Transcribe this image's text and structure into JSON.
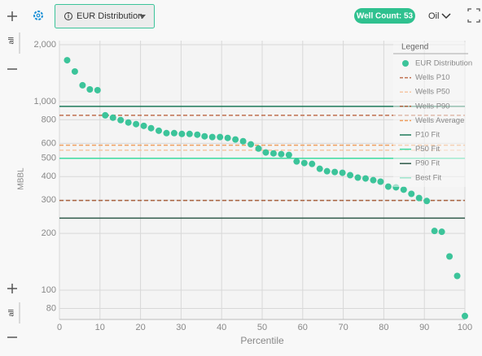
{
  "toolbar": {
    "dropdown": "EUR Distribution",
    "well_count": "Well Count: 53",
    "product": "Oil",
    "side_label_top": "all",
    "side_label_bottom": "all"
  },
  "chart_data": {
    "type": "scatter",
    "ylabel": "MBBL",
    "xlabel": "Percentile",
    "legend_title": "Legend",
    "legend": "top-right",
    "xlim": [
      0,
      100
    ],
    "xticks": [
      0,
      10,
      20,
      30,
      40,
      50,
      60,
      70,
      80,
      90,
      100
    ],
    "ylim": [
      70,
      2000
    ],
    "log_y": true,
    "grid": true,
    "yticks": [
      {
        "value": 2000,
        "label": "2,000"
      },
      {
        "value": 1000,
        "label": "1,000"
      },
      800,
      600,
      500,
      400,
      300,
      200,
      100,
      80
    ],
    "series": [
      {
        "name": "EUR Distribution",
        "color": "#3cc49a",
        "kind": "points",
        "x": [
          1.9,
          3.8,
          5.7,
          7.5,
          9.4,
          11.3,
          13.2,
          15.1,
          17,
          18.9,
          20.8,
          22.6,
          24.5,
          26.4,
          28.3,
          30.2,
          32.1,
          34,
          35.8,
          37.7,
          39.6,
          41.5,
          43.4,
          45.3,
          47.2,
          49.1,
          50.9,
          52.8,
          54.7,
          56.6,
          58.5,
          60.4,
          62.3,
          64.2,
          66,
          67.9,
          69.8,
          71.7,
          73.6,
          75.5,
          77.4,
          79.2,
          81.1,
          83,
          84.9,
          86.8,
          88.7,
          90.6,
          92.5,
          94.3,
          96.2,
          98.1,
          100
        ],
        "values": [
          1655,
          1442,
          1219,
          1159,
          1148,
          845,
          821,
          797,
          774,
          759,
          743,
          722,
          700,
          680,
          680,
          673,
          673,
          667,
          654,
          648,
          648,
          641,
          629,
          616,
          593,
          563,
          537,
          531,
          526,
          521,
          481,
          472,
          467,
          440,
          427,
          423,
          419,
          407,
          395,
          391,
          383,
          376,
          354,
          351,
          341,
          324,
          308,
          297,
          206,
          204,
          151,
          119,
          73
        ]
      },
      {
        "name": "Wells P10",
        "color": "#c0704f",
        "kind": "line",
        "dash": true,
        "value": 845
      },
      {
        "name": "Wells P50",
        "color": "#f5c7a4",
        "kind": "line",
        "dash": true,
        "value": 552
      },
      {
        "name": "Wells P90",
        "color": "#a8623f",
        "kind": "line",
        "dash": true,
        "value": 299
      },
      {
        "name": "Wells Average",
        "color": "#f0a060",
        "kind": "line",
        "dash": true,
        "value": 587
      },
      {
        "name": "P10 Fit",
        "color": "#1e7a5a",
        "kind": "line",
        "dash": false,
        "value": 942
      },
      {
        "name": "P50 Fit",
        "color": "#3ddba0",
        "kind": "line",
        "dash": false,
        "value": 500
      },
      {
        "name": "P90 Fit",
        "color": "#2f5a4a",
        "kind": "line",
        "dash": false,
        "value": 241
      },
      {
        "name": "Best Fit",
        "color": "#9ee6cc",
        "kind": "line",
        "dash": false
      }
    ]
  }
}
